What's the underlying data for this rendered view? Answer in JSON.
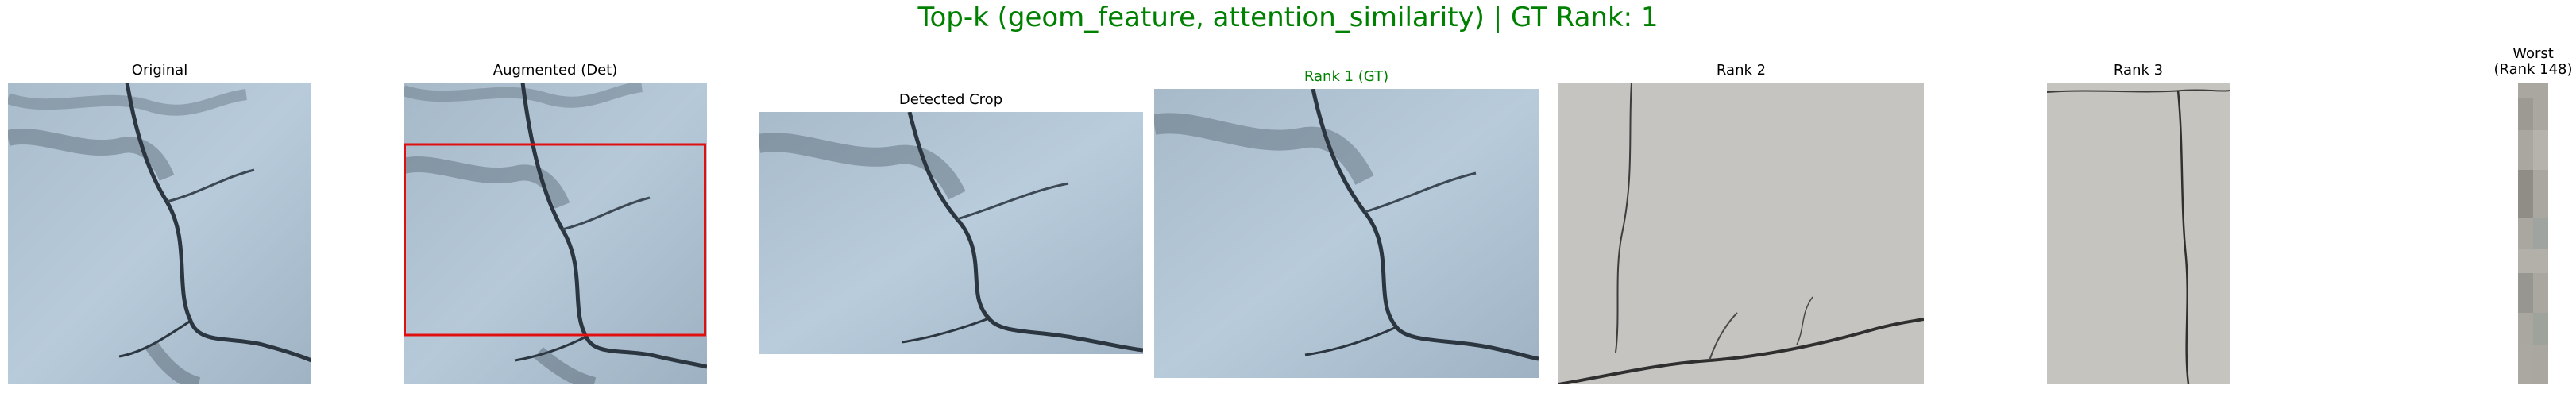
{
  "figure": {
    "title": "Top-k (geom_feature, attention_similarity) | GT Rank: 1",
    "title_color": "#008000"
  },
  "panels": [
    {
      "title": "Original",
      "title_color": "#000000",
      "image": "blue-gray concrete wall with a branching dark crack"
    },
    {
      "title": "Augmented (Det)",
      "title_color": "#000000",
      "image": "same blue-gray cracked wall with a red detection box",
      "box_color": "#e01010"
    },
    {
      "title": "Detected Crop",
      "title_color": "#000000",
      "image": "cropped region of the blue-gray cracked wall"
    },
    {
      "title": "Rank 1 (GT)",
      "title_color": "#008000",
      "image": "blue-gray cracked wall matching the query"
    },
    {
      "title": "Rank 2",
      "title_color": "#000000",
      "image": "light gray plaster wall with thin cracks"
    },
    {
      "title": "Rank 3",
      "title_color": "#000000",
      "image": "light gray wall with a vertical crack"
    },
    {
      "title": "Worst\n(Rank 148)",
      "title_color": "#000000",
      "image": "narrow gray textured strip"
    }
  ]
}
